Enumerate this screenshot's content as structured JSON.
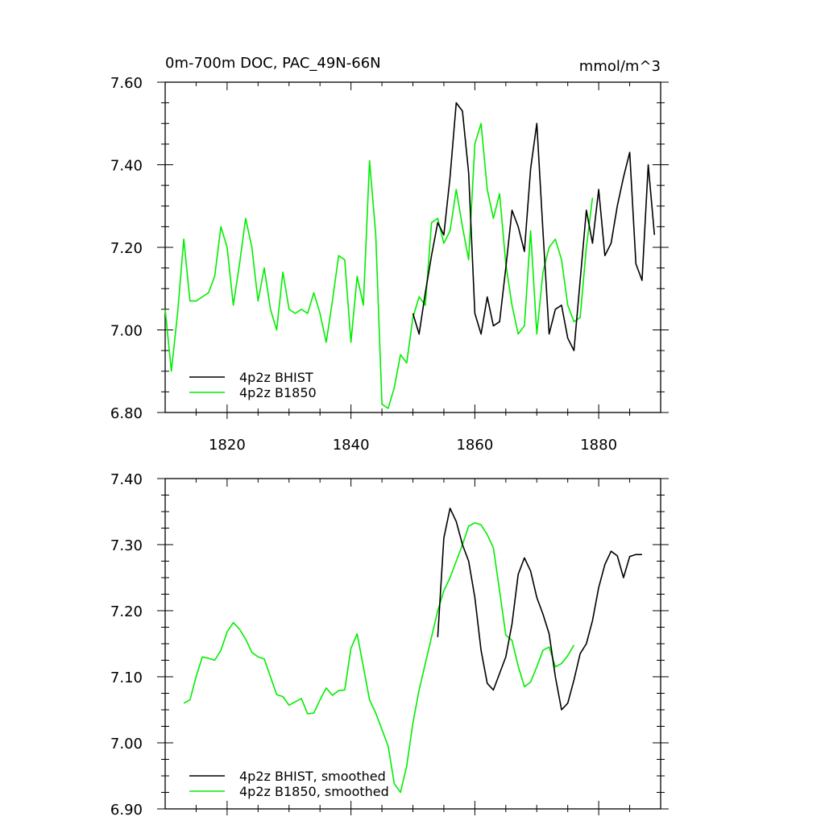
{
  "chart_data": [
    {
      "type": "line",
      "title": "0m-700m DOC, PAC_49N-66N",
      "units_label": "mmol/m^3",
      "xlabel": "",
      "ylabel": "",
      "xlim": [
        1810,
        1890
      ],
      "ylim": [
        6.8,
        7.6
      ],
      "x_ticks": [
        1820,
        1840,
        1860,
        1880
      ],
      "x_tick_labels": [
        "1820",
        "1840",
        "1860",
        "1880"
      ],
      "y_ticks": [
        6.8,
        7.0,
        7.2,
        7.4,
        7.6
      ],
      "y_tick_labels": [
        "6.80",
        "7.00",
        "7.20",
        "7.40",
        "7.60"
      ],
      "legend_position": "bottom-left",
      "grid": false,
      "series": [
        {
          "name": "4p2z BHIST",
          "color": "#000000",
          "x": [
            1850,
            1851,
            1852,
            1853,
            1854,
            1855,
            1856,
            1857,
            1858,
            1859,
            1860,
            1861,
            1862,
            1863,
            1864,
            1865,
            1866,
            1867,
            1868,
            1869,
            1870,
            1871,
            1872,
            1873,
            1874,
            1875,
            1876,
            1877,
            1878,
            1879,
            1880,
            1881,
            1882,
            1883,
            1884,
            1885,
            1886,
            1887,
            1888,
            1889
          ],
          "y": [
            7.04,
            6.99,
            7.09,
            7.18,
            7.26,
            7.23,
            7.37,
            7.55,
            7.53,
            7.38,
            7.04,
            6.99,
            7.08,
            7.01,
            7.02,
            7.15,
            7.29,
            7.25,
            7.19,
            7.39,
            7.5,
            7.24,
            6.99,
            7.05,
            7.06,
            6.98,
            6.95,
            7.12,
            7.29,
            7.21,
            7.34,
            7.18,
            7.21,
            7.3,
            7.37,
            7.43,
            7.16,
            7.12,
            7.4,
            7.23
          ]
        },
        {
          "name": "4p2z B1850",
          "color": "#00ee00",
          "x": [
            1810,
            1811,
            1812,
            1813,
            1814,
            1815,
            1816,
            1817,
            1818,
            1819,
            1820,
            1821,
            1822,
            1823,
            1824,
            1825,
            1826,
            1827,
            1828,
            1829,
            1830,
            1831,
            1832,
            1833,
            1834,
            1835,
            1836,
            1837,
            1838,
            1839,
            1840,
            1841,
            1842,
            1843,
            1844,
            1845,
            1846,
            1847,
            1848,
            1849,
            1850,
            1851,
            1852,
            1853,
            1854,
            1855,
            1856,
            1857,
            1858,
            1859,
            1860,
            1861,
            1862,
            1863,
            1864,
            1865,
            1866,
            1867,
            1868,
            1869,
            1870,
            1871,
            1872,
            1873,
            1874,
            1875,
            1876,
            1877,
            1878,
            1879
          ],
          "y": [
            7.05,
            6.9,
            7.04,
            7.22,
            7.07,
            7.07,
            7.08,
            7.09,
            7.13,
            7.25,
            7.2,
            7.06,
            7.16,
            7.27,
            7.2,
            7.07,
            7.15,
            7.05,
            7.0,
            7.14,
            7.05,
            7.04,
            7.05,
            7.04,
            7.09,
            7.04,
            6.97,
            7.07,
            7.18,
            7.17,
            6.97,
            7.13,
            7.06,
            7.41,
            7.23,
            6.82,
            6.81,
            6.86,
            6.94,
            6.92,
            7.03,
            7.08,
            7.06,
            7.26,
            7.27,
            7.21,
            7.24,
            7.34,
            7.25,
            7.17,
            7.45,
            7.5,
            7.34,
            7.27,
            7.33,
            7.16,
            7.06,
            6.99,
            7.01,
            7.24,
            6.99,
            7.14,
            7.2,
            7.22,
            7.17,
            7.06,
            7.02,
            7.03,
            7.2,
            7.32
          ]
        }
      ]
    },
    {
      "type": "line",
      "title": "",
      "xlabel": "",
      "ylabel": "",
      "xlim": [
        1810,
        1890
      ],
      "ylim": [
        6.9,
        7.4
      ],
      "x_ticks": [
        1820,
        1840,
        1860,
        1880
      ],
      "y_ticks": [
        6.9,
        7.0,
        7.1,
        7.2,
        7.3,
        7.4
      ],
      "y_tick_labels": [
        "6.90",
        "7.00",
        "7.10",
        "7.20",
        "7.30",
        "7.40"
      ],
      "legend_position": "bottom-left",
      "grid": false,
      "series": [
        {
          "name": "4p2z BHIST, smoothed",
          "color": "#000000",
          "x": [
            1854,
            1855,
            1856,
            1857,
            1858,
            1859,
            1860,
            1861,
            1862,
            1863,
            1864,
            1865,
            1866,
            1867,
            1868,
            1869,
            1870,
            1871,
            1872,
            1873,
            1874,
            1875,
            1876,
            1877,
            1878,
            1879,
            1880,
            1881,
            1882,
            1883,
            1884,
            1885,
            1886,
            1887
          ],
          "y": [
            7.16,
            7.31,
            7.355,
            7.335,
            7.3,
            7.275,
            7.22,
            7.14,
            7.09,
            7.08,
            7.105,
            7.13,
            7.18,
            7.255,
            7.28,
            7.26,
            7.22,
            7.195,
            7.165,
            7.1,
            7.05,
            7.06,
            7.095,
            7.135,
            7.15,
            7.185,
            7.235,
            7.27,
            7.29,
            7.283,
            7.25,
            7.282,
            7.285,
            7.285
          ]
        },
        {
          "name": "4p2z B1850, smoothed",
          "color": "#00ee00",
          "x": [
            1813,
            1814,
            1815,
            1816,
            1817,
            1818,
            1819,
            1820,
            1821,
            1822,
            1823,
            1824,
            1825,
            1826,
            1827,
            1828,
            1829,
            1830,
            1831,
            1832,
            1833,
            1834,
            1835,
            1836,
            1837,
            1838,
            1839,
            1840,
            1841,
            1842,
            1843,
            1844,
            1845,
            1846,
            1847,
            1848,
            1849,
            1850,
            1851,
            1852,
            1853,
            1854,
            1855,
            1856,
            1857,
            1858,
            1859,
            1860,
            1861,
            1862,
            1863,
            1864,
            1865,
            1866,
            1867,
            1868,
            1869,
            1870,
            1871,
            1872,
            1873,
            1874,
            1875,
            1876
          ],
          "y": [
            7.06,
            7.065,
            7.1,
            7.13,
            7.128,
            7.125,
            7.14,
            7.168,
            7.182,
            7.172,
            7.157,
            7.137,
            7.13,
            7.127,
            7.1,
            7.073,
            7.07,
            7.057,
            7.062,
            7.067,
            7.044,
            7.045,
            7.065,
            7.083,
            7.072,
            7.079,
            7.08,
            7.143,
            7.165,
            7.115,
            7.065,
            7.045,
            7.02,
            6.995,
            6.938,
            6.925,
            6.965,
            7.03,
            7.08,
            7.12,
            7.16,
            7.2,
            7.23,
            7.25,
            7.275,
            7.3,
            7.328,
            7.333,
            7.33,
            7.315,
            7.295,
            7.23,
            7.163,
            7.155,
            7.116,
            7.085,
            7.092,
            7.115,
            7.14,
            7.145,
            7.115,
            7.12,
            7.132,
            7.148
          ]
        }
      ]
    }
  ]
}
